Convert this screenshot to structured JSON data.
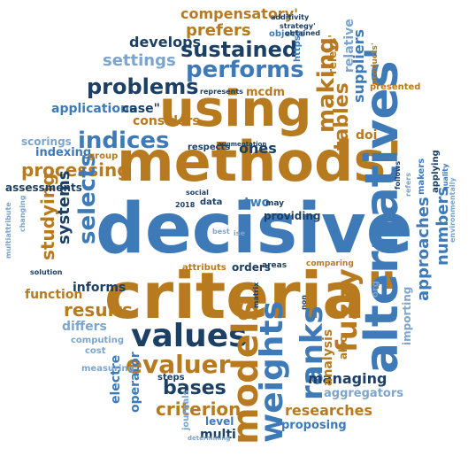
{
  "colors": {
    "orange": "#b87a1e",
    "blue": "#3e7ab8",
    "navy": "#1c3f66",
    "light_blue": "#7da5cc"
  },
  "words": {
    "decisive": "decisive",
    "criteria": "criteria\"",
    "methods": "methods'",
    "using": "using",
    "alternatives": "alternatives'",
    "values": "values",
    "models": "models",
    "weights": "weights",
    "ranks": "ranks",
    "fuzzy": "fuzzy",
    "evaluer": "evaluer",
    "indices": "indices",
    "performs": "performs",
    "sustained": "sustained",
    "problems": "problems",
    "settings": "settings",
    "develops": "develops",
    "prefers": "prefers",
    "compensatory": "compensatory'",
    "making": "making",
    "tables": "tables",
    "approaches": "approaches",
    "numbers": "numbers",
    "processing": "processing",
    "studying": "studying",
    "systems": "systems",
    "selects": "selects",
    "considers": "considers",
    "results": "results",
    "informs": "informs",
    "differs": "differs",
    "function": "function",
    "bases": "bases",
    "criterion": "criterion",
    "operator": "operator",
    "electre": "electre",
    "managing": "managing",
    "researches": "researches",
    "analysis": "analysis",
    "aggregators": "aggregators",
    "proposing": "proposing",
    "multi": "multi",
    "level": "level",
    "journals": "journals",
    "steps": "steps",
    "computing": "computing",
    "measuring": "measuring",
    "ones": "ones",
    "two": "two",
    "orders": "orders",
    "attributs": "attributs",
    "applications": "applications",
    "case": "case\"",
    "indexing": "indexing",
    "scorings": "scorings",
    "assessments": "assessments",
    "group": "group",
    "mcdm": "mcdm",
    "respects": "respects",
    "represents": "represents",
    "objects": "objects",
    "additivity": "additivity",
    "strategy": "strategy'",
    "obtained": "obtained",
    "https": "https",
    "relative": "relative",
    "relevs": "relevs'",
    "suppliers": "suppliers",
    "products": "products'",
    "presented": "presented",
    "doi": "doi",
    "makers": "makers",
    "applying": "applying",
    "quality": "quality",
    "environmentally": "environmentally",
    "follows": "follows",
    "providing": "providing",
    "may": "may",
    "social": "social",
    "data": "data",
    "year_2018": "2018",
    "best": "best",
    "ise": "ise",
    "areas": "areas",
    "comparing": "comparing",
    "org": "org",
    "importing": "importing",
    "also": "also",
    "solution": "solution",
    "cost": "cost",
    "matrix": "matrix",
    "non": "non",
    "determining": "determining",
    "changing": "changing",
    "multiattribute": "multiattribute",
    "refers": "refers",
    "augmentation": "augmentation"
  }
}
